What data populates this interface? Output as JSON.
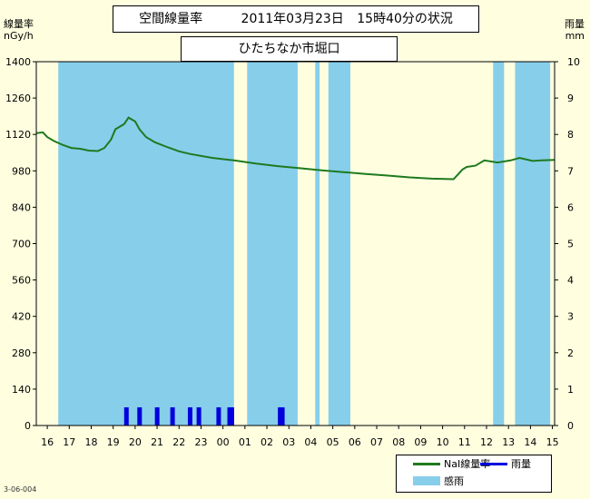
{
  "title": {
    "label": "空間線量率",
    "date": "2011年03月23日",
    "time": "15時40分の状況"
  },
  "location": "ひたちなか市堀口",
  "footnote": "3-06-004",
  "colors": {
    "dose_line": "#1e7a1e",
    "rain_bar": "#0000dd",
    "rain_period": "#87ceeb",
    "background": "#ffffe0"
  },
  "chart_data": {
    "type": "line",
    "y_left": {
      "title_line1": "線量率",
      "title_line2": "nGy/h",
      "ylim": [
        0,
        1400
      ],
      "ticks": [
        "0",
        "140",
        "280",
        "420",
        "560",
        "700",
        "840",
        "980",
        "1120",
        "1260",
        "1400"
      ]
    },
    "y_right": {
      "title_line1": "雨量",
      "title_line2": "mm",
      "ylim": [
        0,
        10
      ],
      "ticks": [
        "0",
        "1",
        "2",
        "3",
        "4",
        "5",
        "6",
        "7",
        "8",
        "9",
        "10"
      ]
    },
    "x_ticks": [
      "16",
      "17",
      "18",
      "19",
      "20",
      "21",
      "22",
      "23",
      "00",
      "01",
      "02",
      "03",
      "04",
      "05",
      "06",
      "07",
      "08",
      "09",
      "10",
      "11",
      "12",
      "13",
      "14",
      "15"
    ],
    "x_range_hours": [
      0,
      23.6
    ],
    "rain_periods": [
      [
        1.0,
        9.0
      ],
      [
        9.6,
        11.9
      ],
      [
        12.7,
        12.9
      ],
      [
        13.3,
        14.3
      ],
      [
        20.8,
        21.3
      ],
      [
        21.8,
        23.4
      ]
    ],
    "rain_bars": [
      {
        "x": 4.0,
        "value": 0.5
      },
      {
        "x": 4.6,
        "value": 0.5
      },
      {
        "x": 5.4,
        "value": 0.5
      },
      {
        "x": 6.1,
        "value": 0.5
      },
      {
        "x": 6.9,
        "value": 0.5
      },
      {
        "x": 7.3,
        "value": 0.5
      },
      {
        "x": 8.2,
        "value": 0.5
      },
      {
        "x": 8.7,
        "value": 0.5
      },
      {
        "x": 8.8,
        "value": 0.5
      },
      {
        "x": 11.0,
        "value": 0.5
      },
      {
        "x": 11.1,
        "value": 0.5
      }
    ],
    "dose_series": {
      "name": "NaI線量率",
      "x": [
        0,
        0.3,
        0.5,
        0.8,
        1.2,
        1.6,
        2.0,
        2.4,
        2.8,
        3.1,
        3.4,
        3.6,
        3.8,
        4.0,
        4.2,
        4.5,
        4.7,
        5.0,
        5.4,
        6.0,
        6.5,
        7.0,
        8.0,
        9.0,
        10.0,
        11.0,
        12.0,
        13.0,
        14.0,
        15.0,
        16.0,
        17.0,
        18.0,
        19.0,
        19.4,
        19.6,
        20.0,
        20.4,
        21.0,
        21.6,
        22.0,
        22.6,
        23.0,
        23.6
      ],
      "values": [
        1125,
        1128,
        1110,
        1095,
        1080,
        1068,
        1065,
        1058,
        1056,
        1068,
        1100,
        1140,
        1150,
        1160,
        1185,
        1170,
        1140,
        1110,
        1090,
        1070,
        1055,
        1045,
        1030,
        1020,
        1008,
        998,
        990,
        982,
        975,
        968,
        962,
        955,
        950,
        948,
        985,
        995,
        1000,
        1020,
        1012,
        1020,
        1030,
        1018,
        1020,
        1022
      ]
    },
    "legend": [
      {
        "type": "line",
        "color": "#1e7a1e",
        "label": "NaI線量率"
      },
      {
        "type": "line",
        "color": "#0000dd",
        "label": "雨量"
      },
      {
        "type": "rect",
        "color": "#87ceeb",
        "label": "感雨"
      }
    ]
  }
}
